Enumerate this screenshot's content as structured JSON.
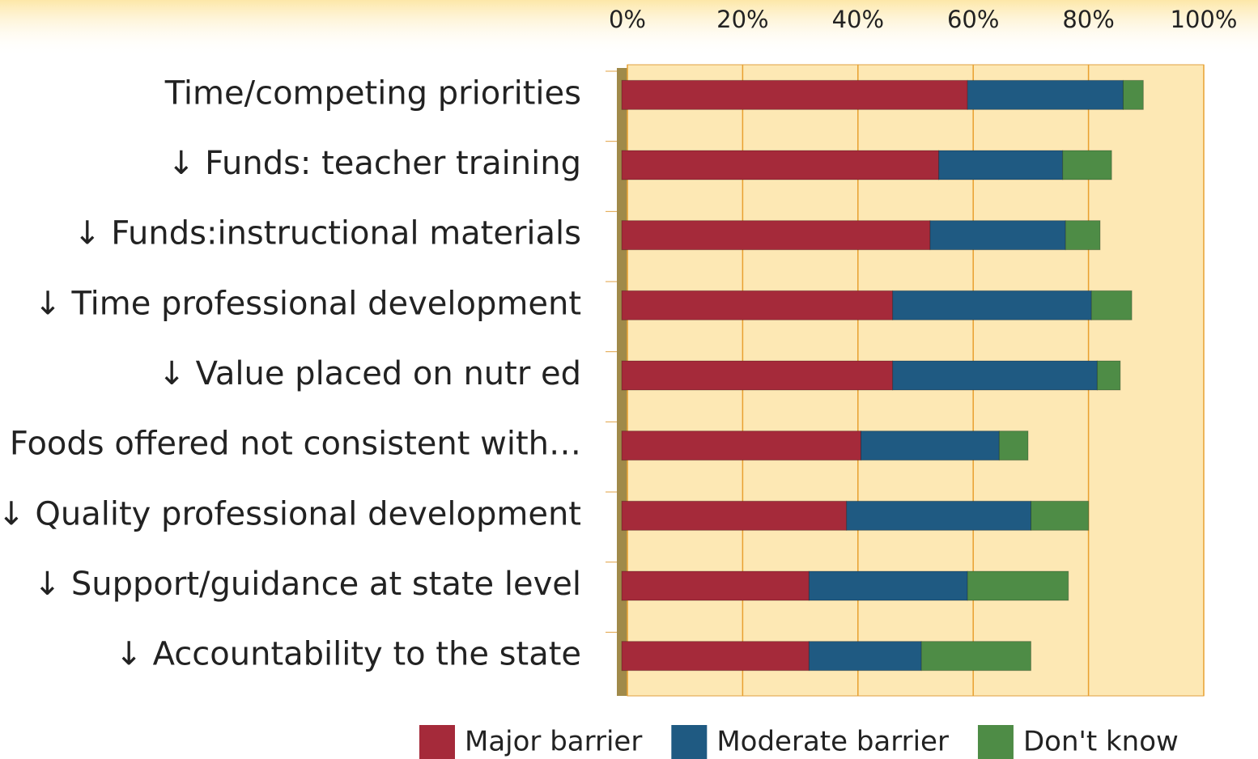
{
  "chart_data": {
    "type": "stacked-bar-horizontal",
    "categories": [
      "Time/competing priorities",
      "↓ Funds: teacher training",
      "↓ Funds:instructional materials",
      "↓ Time professional development",
      "↓ Value placed on nutr ed",
      "Foods offered not consistent with…",
      "↓ Quality professional development",
      "↓ Support/guidance at state level",
      "↓ Accountability to the state"
    ],
    "series": [
      {
        "name": "Major barrier",
        "color": "#a52a3a",
        "values": [
          60,
          55,
          53.5,
          47,
          47,
          41.5,
          39,
          32.5,
          32.5
        ]
      },
      {
        "name": "Moderate barrier",
        "color": "#1f5a82",
        "values": [
          27,
          21.5,
          23.5,
          34.5,
          35.5,
          24,
          32,
          27.5,
          19.5
        ]
      },
      {
        "name": "Don't know",
        "color": "#4e8c46",
        "values": [
          3.5,
          8.5,
          6,
          7,
          4,
          5,
          10,
          17.5,
          19
        ]
      }
    ],
    "xlim": [
      0,
      100
    ],
    "xticks": [
      {
        "value": 0,
        "label": "0%"
      },
      {
        "value": 20,
        "label": "20%"
      },
      {
        "value": 40,
        "label": "40%"
      },
      {
        "value": 60,
        "label": "60%"
      },
      {
        "value": 80,
        "label": "80%"
      },
      {
        "value": 100,
        "label": "100%"
      }
    ],
    "grid": true,
    "legend": "bottom"
  }
}
